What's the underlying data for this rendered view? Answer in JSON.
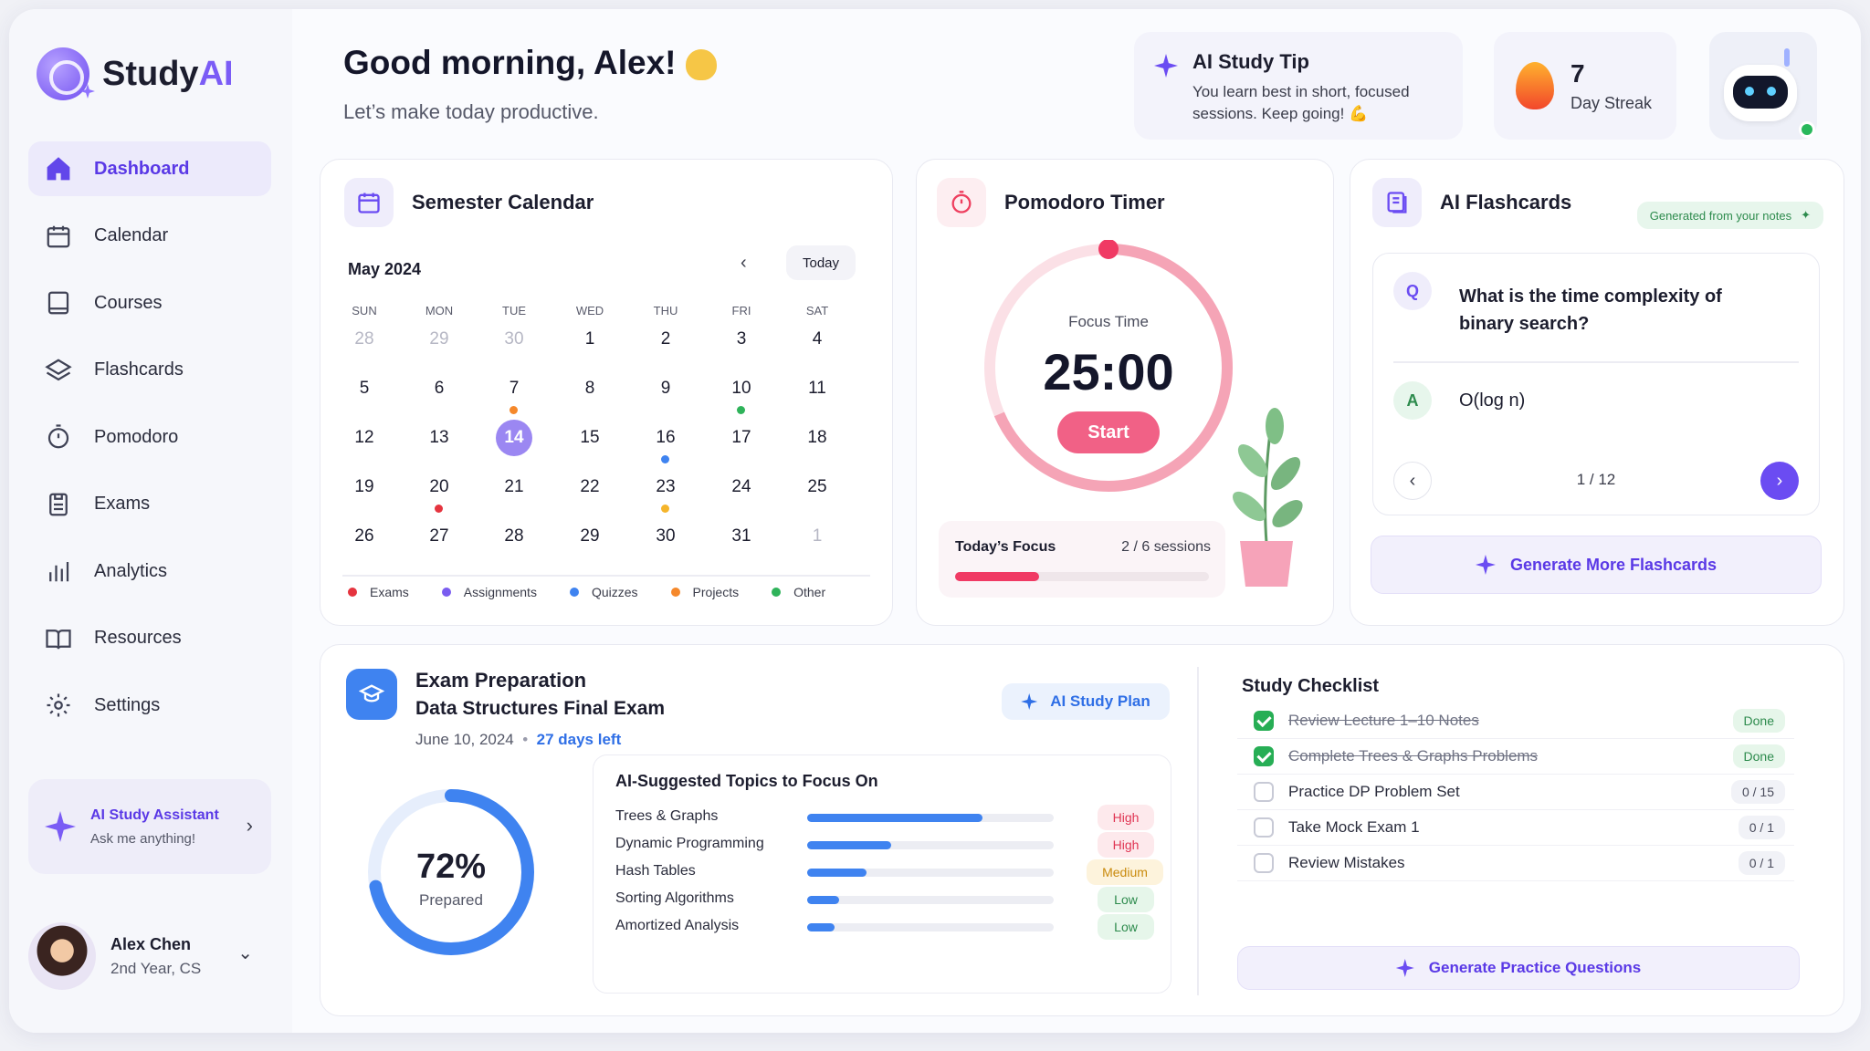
{
  "brand": {
    "name": "Study",
    "accent": "AI"
  },
  "nav": [
    {
      "label": "Dashboard",
      "active": true
    },
    {
      "label": "Calendar"
    },
    {
      "label": "Courses"
    },
    {
      "label": "Flashcards"
    },
    {
      "label": "Pomodoro"
    },
    {
      "label": "Exams"
    },
    {
      "label": "Analytics"
    },
    {
      "label": "Resources"
    },
    {
      "label": "Settings"
    }
  ],
  "assistant": {
    "title": "AI Study Assistant",
    "subtitle": "Ask me anything!"
  },
  "user": {
    "name": "Alex Chen",
    "role": "2nd Year, CS"
  },
  "greeting": {
    "title": "Good morning, Alex!",
    "subtitle": "Let’s make today productive."
  },
  "tip": {
    "title": "AI Study Tip",
    "body": "You learn best in short, focused sessions. Keep going! 💪"
  },
  "streak": {
    "count": "7",
    "label": "Day Streak"
  },
  "calendar": {
    "title": "Semester Calendar",
    "month": "May 2024",
    "today_label": "Today",
    "dow": [
      "SUN",
      "MON",
      "TUE",
      "WED",
      "THU",
      "FRI",
      "SAT"
    ],
    "weeks": [
      [
        "28",
        "29",
        "30",
        "1",
        "2",
        "3",
        "4"
      ],
      [
        "5",
        "6",
        "7",
        "8",
        "9",
        "10",
        "11"
      ],
      [
        "12",
        "13",
        "14",
        "15",
        "16",
        "17",
        "18"
      ],
      [
        "19",
        "20",
        "21",
        "22",
        "23",
        "24",
        "25"
      ],
      [
        "26",
        "27",
        "28",
        "29",
        "30",
        "31",
        "1"
      ]
    ],
    "muted": [
      [
        0,
        0
      ],
      [
        0,
        1
      ],
      [
        0,
        2
      ],
      [
        4,
        6
      ]
    ],
    "selected": [
      2,
      2
    ],
    "events": [
      {
        "cell": [
          1,
          2
        ],
        "type": "Projects"
      },
      {
        "cell": [
          1,
          5
        ],
        "type": "Other"
      },
      {
        "cell": [
          2,
          4
        ],
        "type": "Quizzes"
      },
      {
        "cell": [
          3,
          1
        ],
        "type": "Exams"
      },
      {
        "cell": [
          3,
          4
        ],
        "type": "Projects2"
      }
    ],
    "legend": [
      {
        "label": "Exams",
        "color": "#e5343f"
      },
      {
        "label": "Assignments",
        "color": "#7a5cf0"
      },
      {
        "label": "Quizzes",
        "color": "#3f83f0"
      },
      {
        "label": "Projects",
        "color": "#f5882b"
      },
      {
        "label": "Other",
        "color": "#2fb35a"
      }
    ]
  },
  "pomodoro": {
    "title": "Pomodoro Timer",
    "mode": "Focus Time",
    "time": "25:00",
    "start_label": "Start",
    "focus_label": "Today’s Focus",
    "sessions": "2 / 6 sessions",
    "progress": 0.33
  },
  "flashcards": {
    "title": "AI Flashcards",
    "badge": "Generated from your notes",
    "q_tag": "Q",
    "question": "What is the time complexity of binary search?",
    "a_tag": "A",
    "answer": "O(log n)",
    "counter": "1  /  12",
    "generate_label": "Generate More Flashcards"
  },
  "exam": {
    "title": "Exam Preparation",
    "name": "Data Structures Final Exam",
    "date": "June 10, 2024",
    "sep": "•",
    "left": "27 days left",
    "plan_label": "AI Study Plan",
    "percent": "72%",
    "percent_value": 0.72,
    "prepared_label": "Prepared",
    "topics_title": "AI-Suggested Topics to Focus On",
    "topics": [
      {
        "name": "Trees & Graphs",
        "value": 0.71,
        "level": "High",
        "cls": "high"
      },
      {
        "name": "Dynamic Programming",
        "value": 0.34,
        "level": "High",
        "cls": "high"
      },
      {
        "name": "Hash Tables",
        "value": 0.24,
        "level": "Medium",
        "cls": "med"
      },
      {
        "name": "Sorting Algorithms",
        "value": 0.13,
        "level": "Low",
        "cls": "low"
      },
      {
        "name": "Amortized Analysis",
        "value": 0.11,
        "level": "Low",
        "cls": "low"
      }
    ],
    "checklist_title": "Study Checklist",
    "checklist": [
      {
        "label": "Review Lecture 1–10 Notes",
        "done": true,
        "tag": "Done"
      },
      {
        "label": "Complete Trees & Graphs Problems",
        "done": true,
        "tag": "Done"
      },
      {
        "label": "Practice DP Problem Set",
        "done": false,
        "tag": "0 / 15"
      },
      {
        "label": "Take Mock Exam 1",
        "done": false,
        "tag": "0 / 1"
      },
      {
        "label": "Review Mistakes",
        "done": false,
        "tag": "0 / 1"
      }
    ],
    "practice_label": "Generate Practice Questions"
  }
}
